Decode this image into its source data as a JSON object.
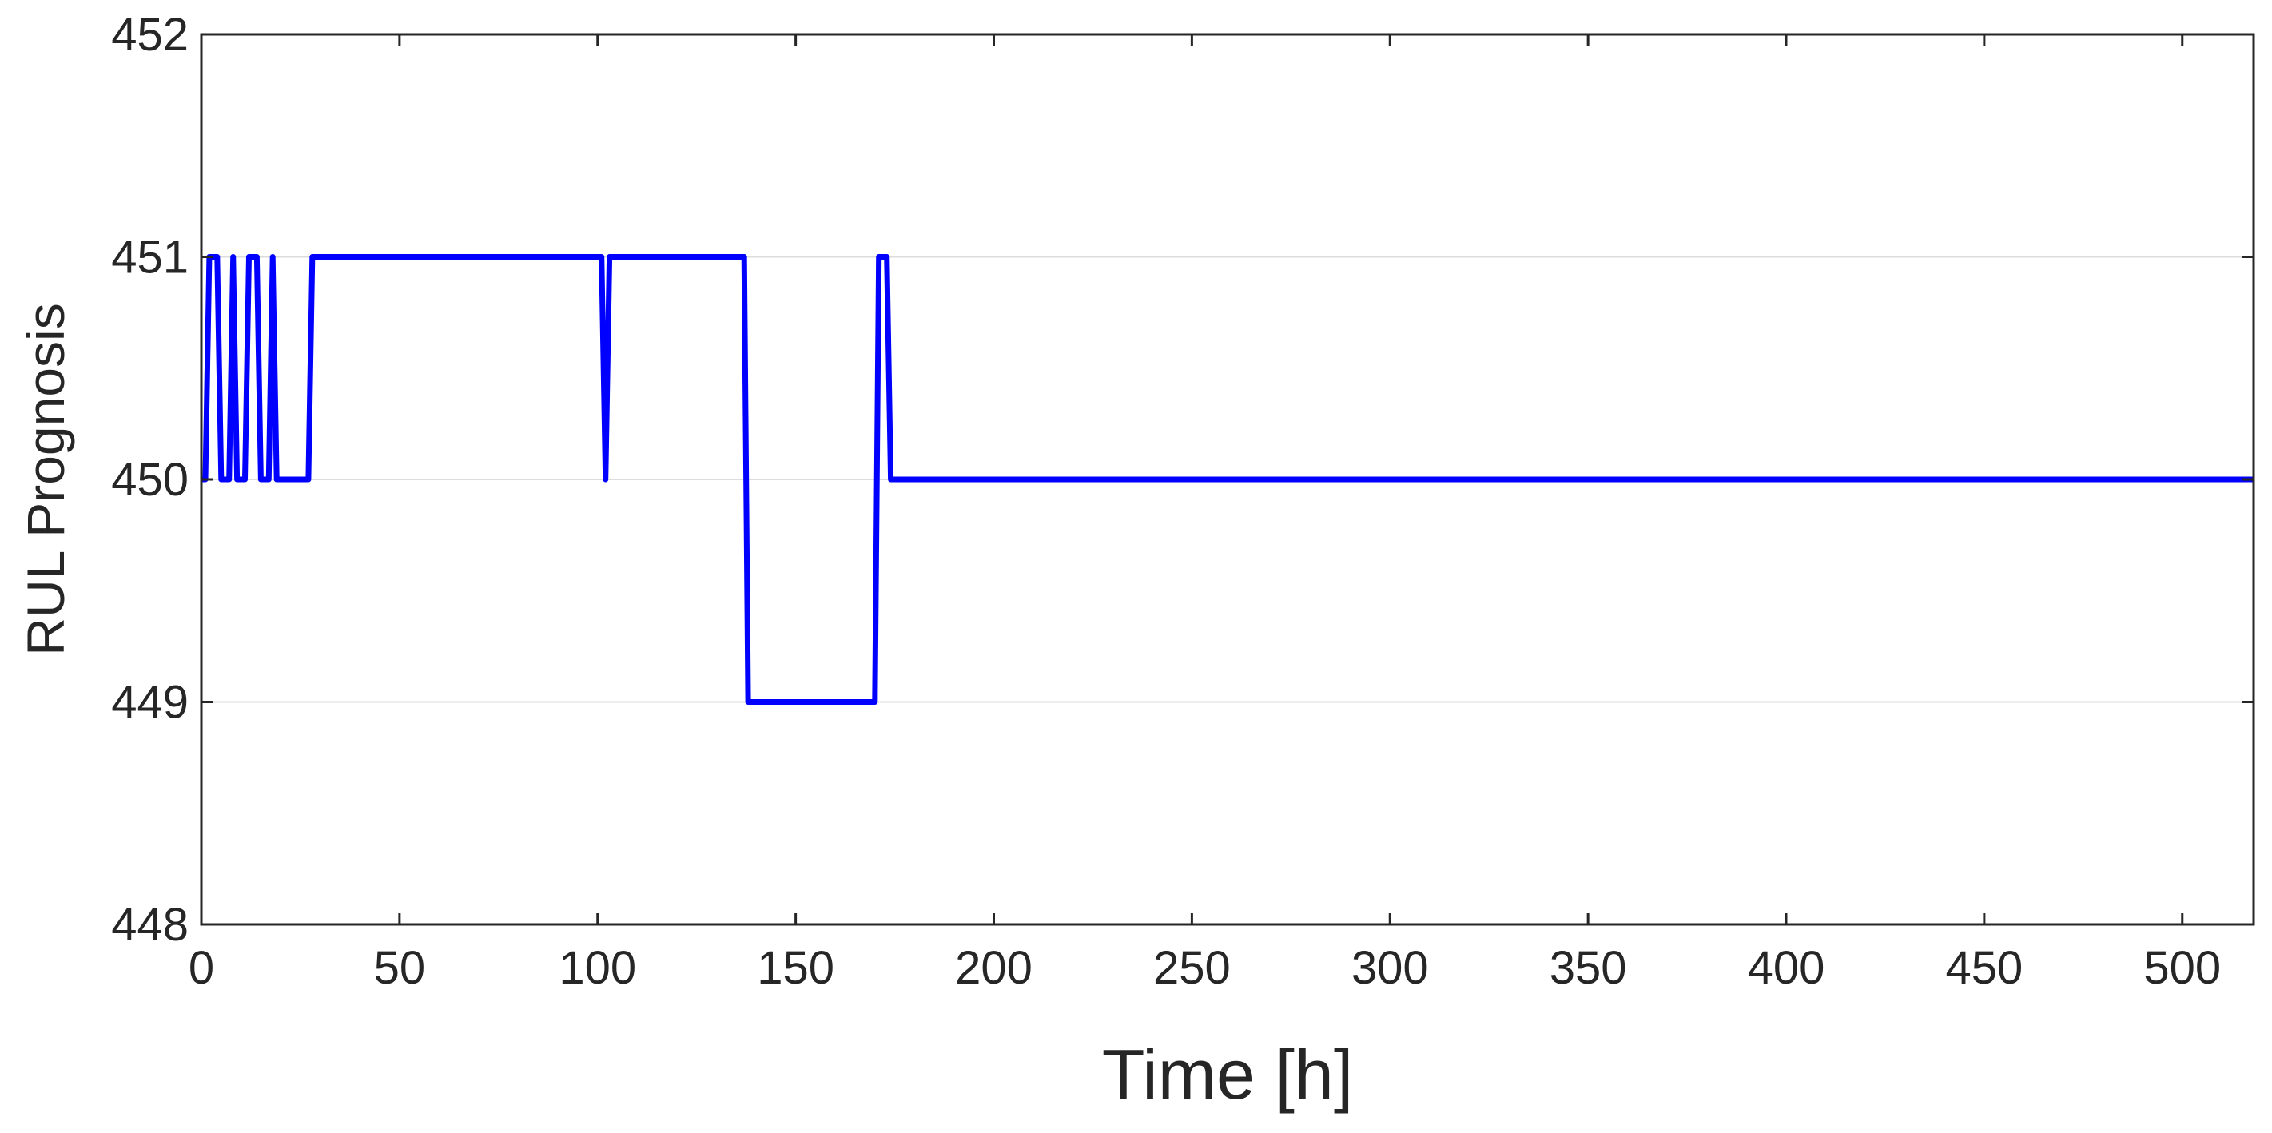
{
  "chart_data": {
    "type": "line",
    "title": "",
    "xlabel": "Time [h]",
    "ylabel": "RUL Prognosis",
    "xlim": [
      0,
      518
    ],
    "ylim": [
      448,
      452
    ],
    "xticks": [
      0,
      50,
      100,
      150,
      200,
      250,
      300,
      350,
      400,
      450,
      500
    ],
    "yticks": [
      448,
      449,
      450,
      451,
      452
    ],
    "grid": "horizontal",
    "legend": "none",
    "series": [
      {
        "color": "#0000ff",
        "x": [
          0,
          1,
          2,
          3,
          4,
          5,
          6,
          7,
          8,
          9,
          10,
          11,
          12,
          13,
          14,
          15,
          16,
          17,
          18,
          19,
          20,
          27,
          28,
          100,
          101,
          102,
          103,
          137,
          138,
          170,
          171,
          173,
          174,
          518
        ],
        "y": [
          450,
          450,
          451,
          451,
          451,
          450,
          450,
          450,
          451,
          450,
          450,
          450,
          451,
          451,
          451,
          450,
          450,
          450,
          451,
          450,
          450,
          450,
          451,
          451,
          451,
          450,
          451,
          451,
          449,
          449,
          451,
          451,
          450,
          450
        ]
      }
    ]
  }
}
